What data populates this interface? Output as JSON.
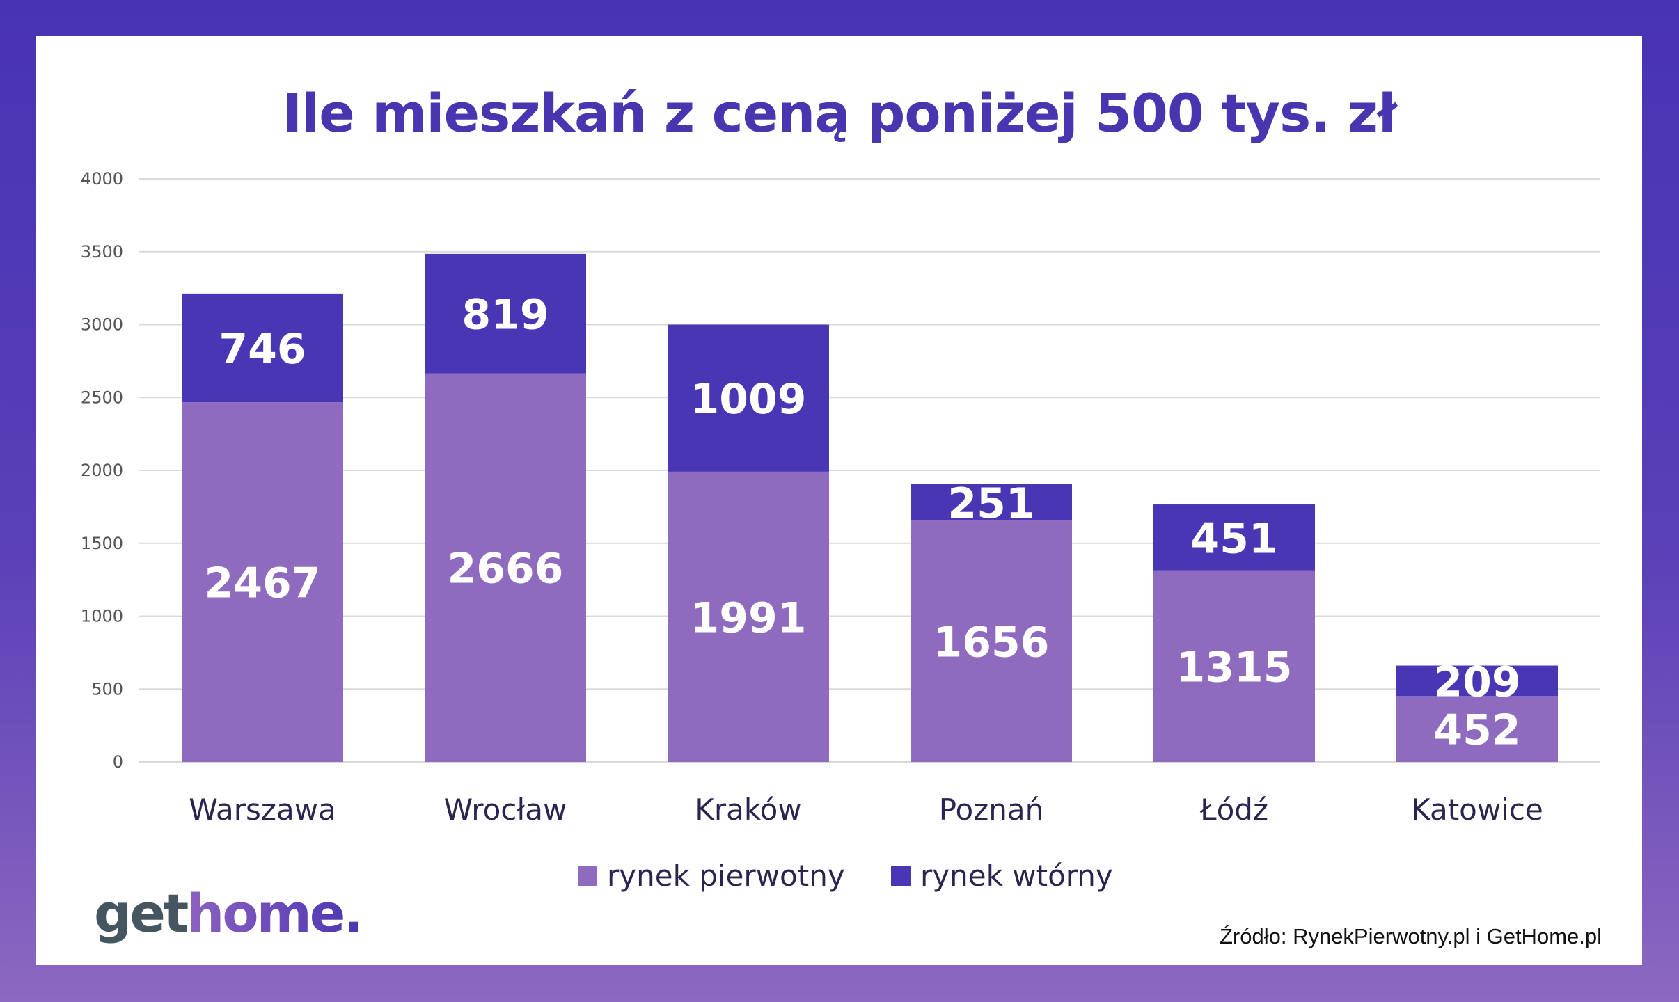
{
  "chart_data": {
    "type": "bar",
    "stacked": true,
    "title": "Ile mieszkań z ceną poniżej 500 tys. zł",
    "categories": [
      "Warszawa",
      "Wrocław",
      "Kraków",
      "Poznań",
      "Łódź",
      "Katowice"
    ],
    "series": [
      {
        "name": "rynek pierwotny",
        "values": [
          2467,
          2666,
          1991,
          1656,
          1315,
          452
        ],
        "color": "#8f6bc0"
      },
      {
        "name": "rynek wtórny",
        "values": [
          746,
          819,
          1009,
          251,
          451,
          209
        ],
        "color": "#4936b4"
      }
    ],
    "ylim": [
      0,
      4000
    ],
    "yticks": [
      0,
      500,
      1000,
      1500,
      2000,
      2500,
      3000,
      3500,
      4000
    ],
    "grid": true,
    "legend": "bottom-center",
    "xlabel": "",
    "ylabel": ""
  },
  "logo": {
    "part1": "get",
    "part2": "home."
  },
  "source": "Źródło: RynekPierwotny.pl i GetHome.pl"
}
